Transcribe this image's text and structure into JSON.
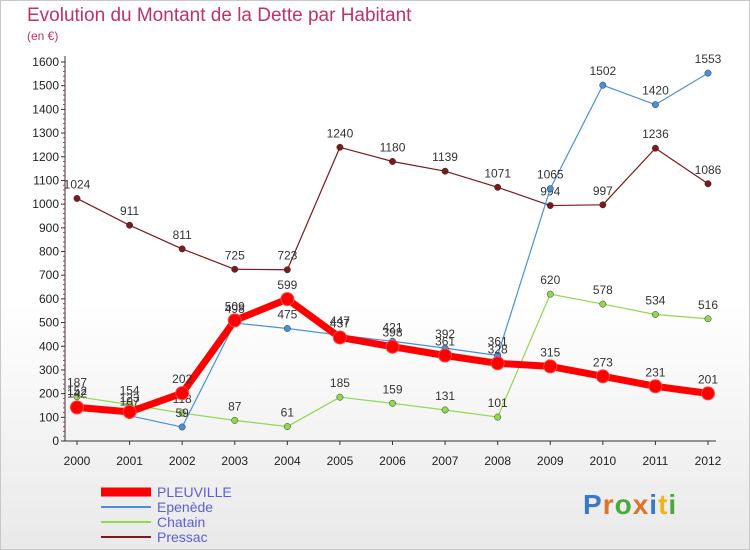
{
  "chart_data": {
    "type": "line",
    "title": "Evolution du Montant de la Dette par Habitant",
    "subtitle": "(en €)",
    "xlabel": "",
    "ylabel": "",
    "x": [
      "2000",
      "2001",
      "2002",
      "2003",
      "2004",
      "2005",
      "2006",
      "2007",
      "2008",
      "2009",
      "2010",
      "2011",
      "2012"
    ],
    "ylim": [
      0,
      1600
    ],
    "yticks": [
      0,
      100,
      200,
      300,
      400,
      500,
      600,
      700,
      800,
      900,
      1000,
      1100,
      1200,
      1300,
      1400,
      1500,
      1600
    ],
    "grid": false,
    "legend_position": "bottom-left",
    "series": [
      {
        "name": "PLEUVILLE",
        "color": "#ff0000",
        "values": [
          142,
          123,
          202,
          509,
          599,
          437,
          398,
          361,
          328,
          315,
          273,
          231,
          201
        ]
      },
      {
        "name": "Epenède",
        "color": "#4a90d9",
        "values": [
          152,
          107,
          59,
          498,
          475,
          447,
          421,
          392,
          361,
          1065,
          1502,
          1420,
          1553
        ]
      },
      {
        "name": "Chatain",
        "color": "#90d850",
        "values": [
          187,
          154,
          118,
          87,
          61,
          185,
          159,
          131,
          101,
          620,
          578,
          534,
          516
        ]
      },
      {
        "name": "Pressac",
        "color": "#7a1a1a",
        "values": [
          1024,
          911,
          811,
          725,
          723,
          1240,
          1180,
          1139,
          1071,
          994,
          997,
          1236,
          1086
        ]
      }
    ]
  },
  "logo": {
    "text": "Proxiti",
    "letters": [
      "P",
      "r",
      "o",
      "x",
      "i",
      "t",
      "i"
    ]
  },
  "colors": {
    "title": "#c0306a",
    "legend_text": "#5b5fd6",
    "axis_tick": "#c0306a"
  }
}
